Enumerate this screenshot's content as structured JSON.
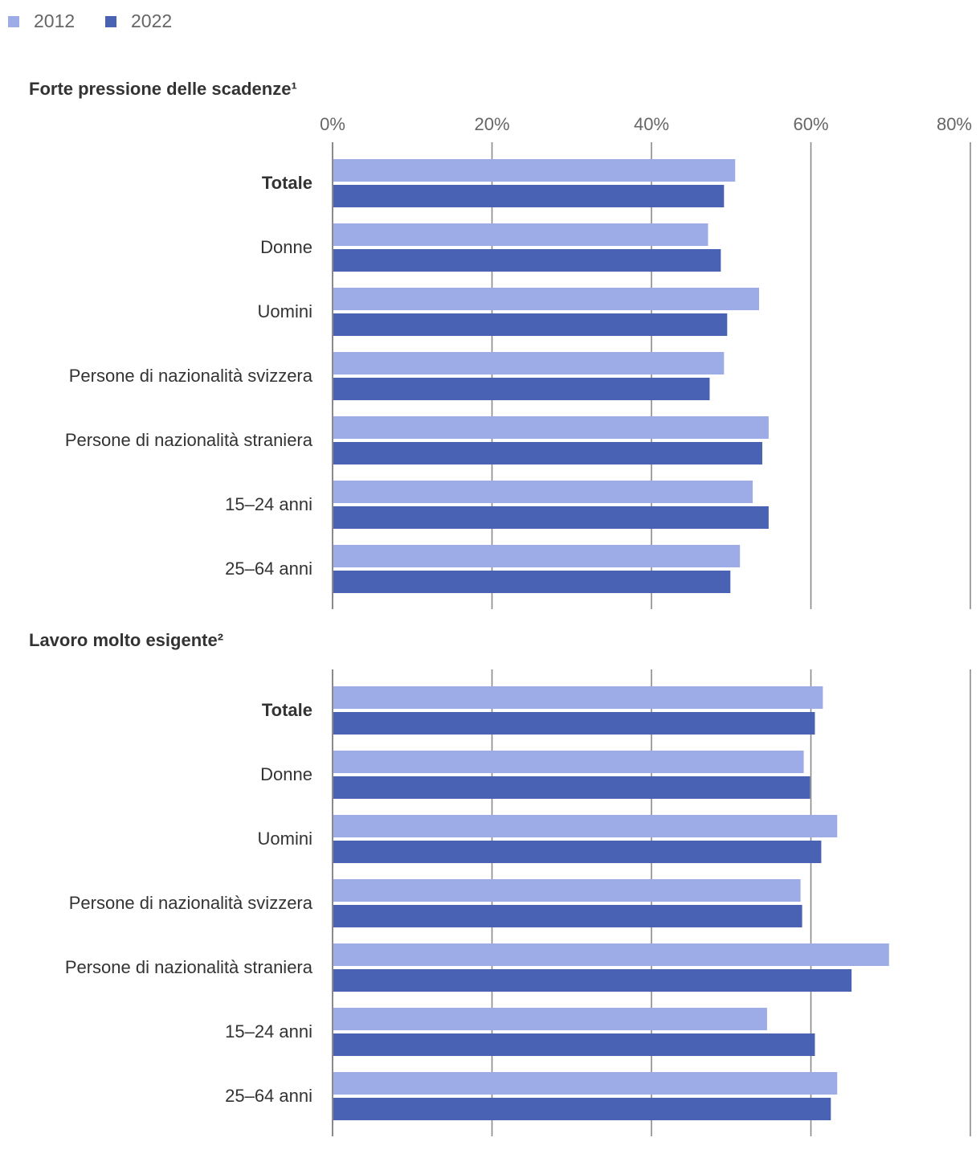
{
  "colors": {
    "s2012": "#9dabe6",
    "s2022": "#4a62b3",
    "grid": "#8a8a8a",
    "text": "#333333",
    "tick": "#666666"
  },
  "chart_data": [
    {
      "type": "bar",
      "orientation": "horizontal",
      "title": "Forte pressione delle scadenze¹",
      "xlim": [
        0,
        80
      ],
      "ticks": [
        "0%",
        "20%",
        "40%",
        "60%",
        "80%"
      ],
      "tick_values": [
        0,
        20,
        40,
        60,
        80
      ],
      "show_tick_labels": true,
      "categories": [
        "Totale",
        "Donne",
        "Uomini",
        "Persone di nazionalità svizzera",
        "Persone di nazionalità straniera",
        "15–24 anni",
        "25–64 anni"
      ],
      "bold_categories": [
        "Totale"
      ],
      "series": [
        {
          "name": "2012",
          "values": [
            50.5,
            47.1,
            53.5,
            49.1,
            54.7,
            52.7,
            51.1
          ]
        },
        {
          "name": "2022",
          "values": [
            49.1,
            48.7,
            49.5,
            47.3,
            53.9,
            54.7,
            49.9
          ]
        }
      ]
    },
    {
      "type": "bar",
      "orientation": "horizontal",
      "title": "Lavoro molto esigente²",
      "xlim": [
        0,
        80
      ],
      "ticks": [
        "0%",
        "20%",
        "40%",
        "60%",
        "80%"
      ],
      "tick_values": [
        0,
        20,
        40,
        60,
        80
      ],
      "show_tick_labels": false,
      "categories": [
        "Totale",
        "Donne",
        "Uomini",
        "Persone di nazionalità svizzera",
        "Persone di nazionalità straniera",
        "15–24 anni",
        "25–64 anni"
      ],
      "bold_categories": [
        "Totale"
      ],
      "series": [
        {
          "name": "2012",
          "values": [
            61.5,
            59.1,
            63.3,
            58.7,
            69.8,
            54.5,
            63.3
          ]
        },
        {
          "name": "2022",
          "values": [
            60.5,
            59.9,
            61.3,
            58.9,
            65.1,
            60.5,
            62.5
          ]
        }
      ]
    }
  ],
  "legend": [
    {
      "label": "2012",
      "color": "#9dabe6"
    },
    {
      "label": "2022",
      "color": "#4a62b3"
    }
  ]
}
